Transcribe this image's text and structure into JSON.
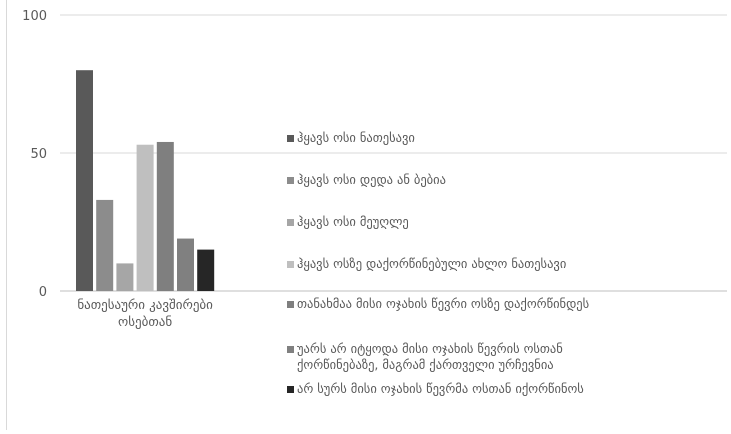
{
  "chart_data": {
    "type": "bar",
    "categories": [
      "ნათესაური კავშირები ოსებთან"
    ],
    "category_lines": [
      "ნათესაური კავშირები",
      "ოსებთან"
    ],
    "series": [
      {
        "name": "ჰყავს ოსი ნათესავი",
        "values": [
          80
        ],
        "color": "#595959"
      },
      {
        "name": "ჰყავს ოსი დედა ან ბებია",
        "values": [
          33
        ],
        "color": "#8c8c8c"
      },
      {
        "name": "ჰყავს ოსი მეუღლე",
        "values": [
          10
        ],
        "color": "#a6a6a6"
      },
      {
        "name": "ჰყავს ოსზე დაქორწინებული ახლო ნათესავი",
        "values": [
          53
        ],
        "color": "#bfbfbf"
      },
      {
        "name": "თანახმაა მისი ოჯახის წევრი ოსზე დაქორწინდეს",
        "values": [
          54
        ],
        "color": "#7f7f7f"
      },
      {
        "name": "უარს არ იტყოდა მისი ოჯახის წევრის ოსთან ქორწინებაზე, მაგრამ ქართველი ურჩევნია",
        "values": [
          19
        ],
        "color": "#808080"
      },
      {
        "name": "არ სურს მისი ოჯახის წევრმა ოსთან იქორწინოს",
        "values": [
          15
        ],
        "color": "#262626"
      }
    ],
    "ylim": [
      0,
      100
    ],
    "yticks": [
      0,
      50,
      100
    ],
    "grid": true,
    "legend_position": "right"
  }
}
